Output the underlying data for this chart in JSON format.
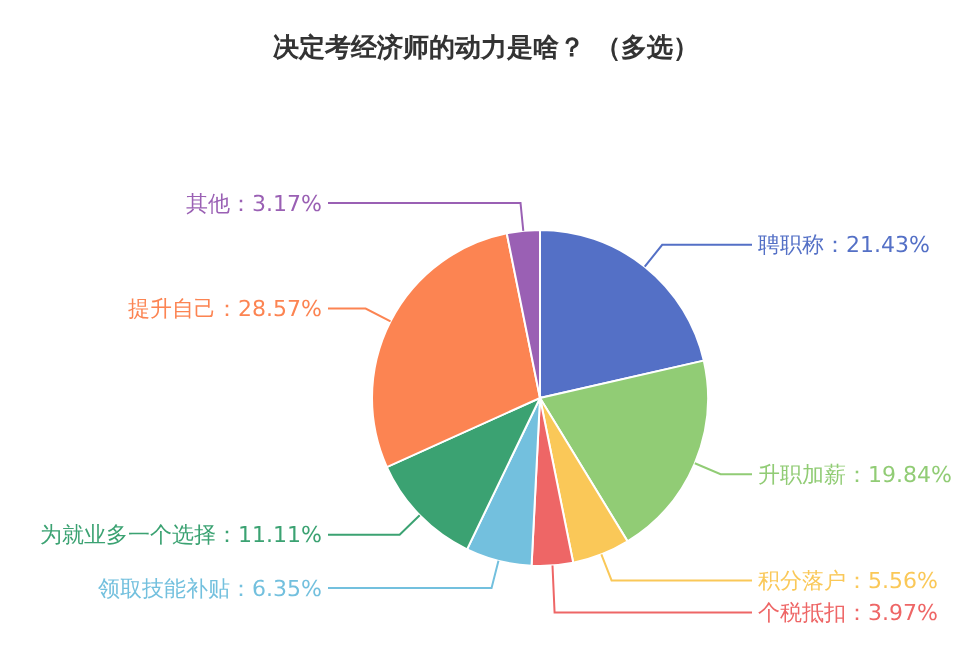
{
  "chart_data": {
    "type": "pie",
    "title": "决定考经济师的动力是啥？ （多选）",
    "categories": [
      "聘职称",
      "升职加薪",
      "积分落户",
      "个税抵扣",
      "领取技能补贴",
      "为就业多一个选择",
      "提升自己",
      "其他"
    ],
    "values": [
      21.43,
      19.84,
      5.56,
      3.97,
      6.35,
      11.11,
      28.57,
      3.17
    ],
    "value_labels": [
      "21.43%",
      "19.84%",
      "5.56%",
      "3.97%",
      "6.35%",
      "11.11%",
      "28.57%",
      "3.17%"
    ],
    "colors": [
      "#5470c6",
      "#91cc75",
      "#fac858",
      "#ee6666",
      "#73c0de",
      "#3ba272",
      "#fc8452",
      "#9a60b4"
    ]
  }
}
